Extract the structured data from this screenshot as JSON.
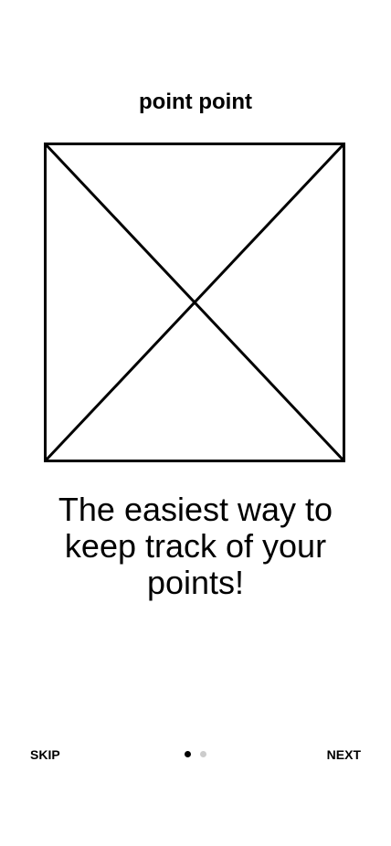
{
  "app": {
    "title": "point point"
  },
  "onboarding": {
    "illustration_icon": "image-placeholder-icon",
    "tagline": "The easiest way to keep track of your points!",
    "page_count": 2,
    "current_page": 1
  },
  "footer": {
    "skip_label": "SKIP",
    "next_label": "NEXT"
  },
  "colors": {
    "text": "#000000",
    "background": "#ffffff",
    "dot_active": "#000000",
    "dot_inactive": "#cccccc"
  }
}
